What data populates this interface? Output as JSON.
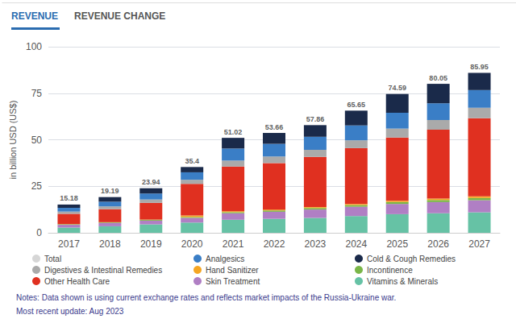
{
  "chart_data": {
    "type": "bar",
    "stacked": true,
    "title": "REVENUE",
    "subtitle": "REVENUE CHANGE",
    "y_label": "in billion USD (US$)",
    "categories": [
      "2017",
      "2018",
      "2019",
      "2020",
      "2021",
      "2022",
      "2023",
      "2024",
      "2025",
      "2026",
      "2027"
    ],
    "series": [
      {
        "name": "Vitamins & Minerals",
        "color": "#66c2a5",
        "values": [
          2.8,
          3.5,
          4.5,
          5.5,
          7.0,
          7.5,
          8.0,
          9.0,
          10.0,
          10.5,
          11.0
        ]
      },
      {
        "name": "Skin Treatment",
        "color": "#b07fc4",
        "values": [
          1.5,
          1.8,
          2.0,
          2.5,
          3.5,
          3.8,
          4.5,
          5.0,
          5.5,
          6.0,
          6.5
        ]
      },
      {
        "name": "Incontinence",
        "color": "#7ab648",
        "values": [
          0.3,
          0.3,
          0.4,
          0.5,
          0.6,
          0.7,
          0.8,
          0.9,
          1.0,
          1.1,
          1.2
        ]
      },
      {
        "name": "Hand Sanitizer",
        "color": "#f5a623",
        "values": [
          0.1,
          0.1,
          0.2,
          0.8,
          0.5,
          0.5,
          0.5,
          0.6,
          0.7,
          0.8,
          0.9
        ]
      },
      {
        "name": "Other Health Care",
        "color": "#e03020",
        "values": [
          5.5,
          7.0,
          9.0,
          17.0,
          24.0,
          25.0,
          27.0,
          30.0,
          34.0,
          37.0,
          42.0
        ]
      },
      {
        "name": "Digestives & Intestinal Remedies",
        "color": "#aaaaaa",
        "values": [
          1.2,
          1.5,
          1.8,
          2.2,
          3.2,
          3.5,
          3.8,
          4.2,
          4.8,
          5.2,
          5.6
        ]
      },
      {
        "name": "Analgesics",
        "color": "#3a7ec6",
        "values": [
          2.0,
          2.5,
          3.2,
          4.0,
          6.5,
          6.8,
          7.0,
          8.0,
          8.5,
          9.0,
          9.5
        ]
      },
      {
        "name": "Cold & Cough Remedies",
        "color": "#1a2a4a",
        "values": [
          1.78,
          2.49,
          2.84,
          2.85,
          5.72,
          5.86,
          6.26,
          7.95,
          10.09,
          10.45,
          9.25
        ]
      }
    ],
    "totals": {
      "name": "Total",
      "color": "#cccccc",
      "values": [
        15.18,
        19.19,
        23.94,
        35.4,
        51.02,
        53.66,
        57.86,
        65.65,
        74.59,
        80.05,
        85.95
      ]
    },
    "legend_entries": [
      "Total",
      "Analgesics",
      "Cold & Cough Remedies",
      "Digestives & Intestinal Remedies",
      "Hand Sanitizer",
      "Incontinence",
      "Other Health Care",
      "Skin Treatment",
      "Vitamins & Minerals"
    ],
    "legend": "bottom",
    "annotations": [
      "Notes: Data shown is using current exchange rates and reflects market impacts of the Russia-Ukraine war.",
      "Most recent update: Aug 2023"
    ],
    "ylim": [
      0,
      100
    ],
    "yticks": [
      0,
      25,
      50,
      75,
      100
    ],
    "grid": true
  }
}
